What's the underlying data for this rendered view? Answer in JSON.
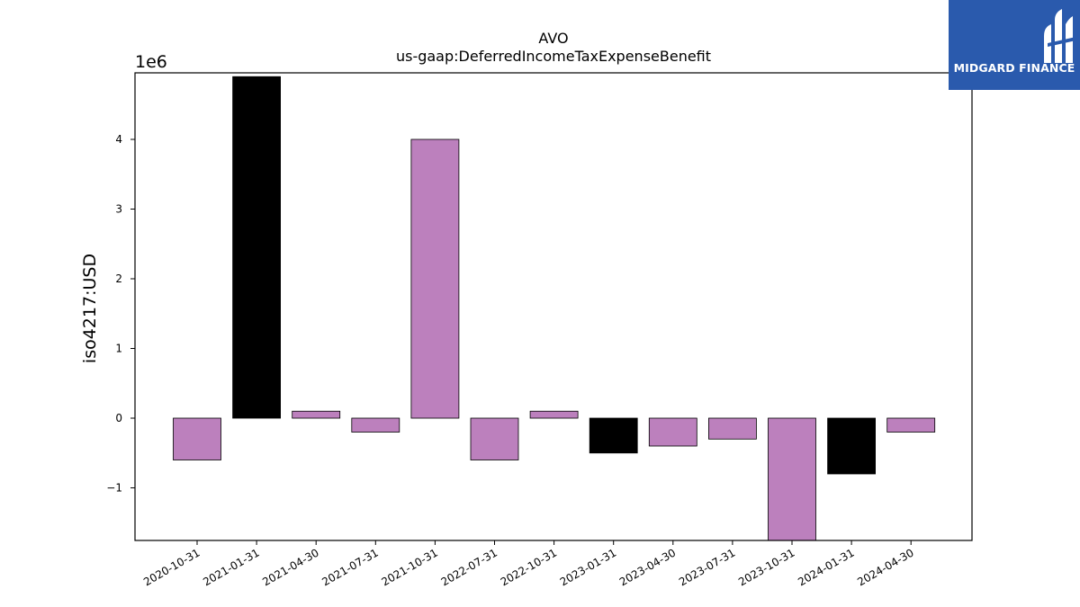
{
  "chart_data": {
    "type": "bar",
    "title": "AVO",
    "subtitle": "us-gaap:DeferredIncomeTaxExpenseBenefit",
    "xlabel": "",
    "ylabel": "iso4217:USD",
    "y_offset_label": "1e6",
    "ylim": [
      -1.78,
      5.0
    ],
    "yticks": [
      -1,
      0,
      1,
      2,
      3,
      4
    ],
    "ytick_labels": [
      "−1",
      "0",
      "1",
      "2",
      "3",
      "4"
    ],
    "grid": false,
    "categories": [
      "2020-10-31",
      "2021-01-31",
      "2021-04-30",
      "2021-07-31",
      "2021-10-31",
      "2022-07-31",
      "2022-10-31",
      "2023-01-31",
      "2023-04-30",
      "2023-07-31",
      "2023-10-31",
      "2024-01-31",
      "2024-04-30"
    ],
    "values": [
      -0.6,
      4.9,
      0.1,
      -0.2,
      4.0,
      -0.6,
      0.1,
      -0.5,
      -0.4,
      -0.3,
      -1.78,
      -0.8,
      -0.2
    ],
    "bar_colors": [
      "#bc80bd",
      "#000000",
      "#bc80bd",
      "#bc80bd",
      "#bc80bd",
      "#bc80bd",
      "#bc80bd",
      "#000000",
      "#bc80bd",
      "#bc80bd",
      "#bc80bd",
      "#000000",
      "#bc80bd"
    ]
  },
  "logo": {
    "text": "MIDGARD FINANCE",
    "icon": "midgard-logo-icon",
    "color": "#2a5aad"
  }
}
